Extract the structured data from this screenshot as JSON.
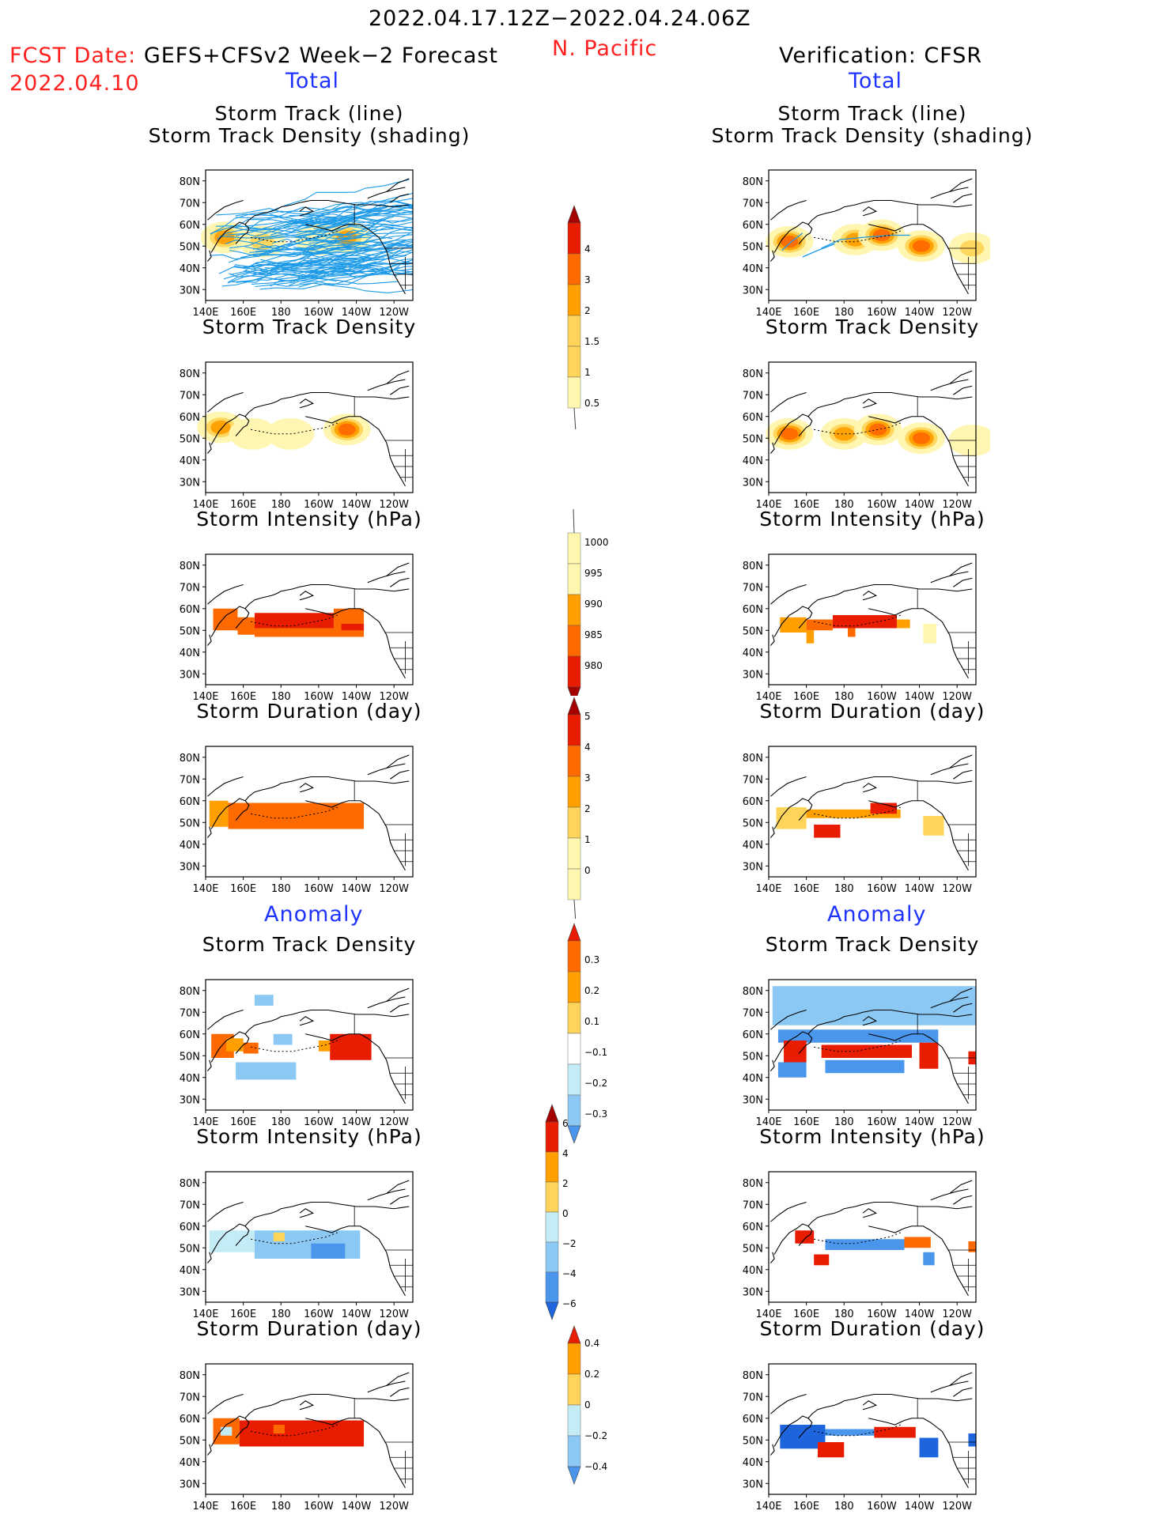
{
  "header": {
    "period": "2022.04.17.12Z−2022.04.24.06Z",
    "region": "N. Pacific",
    "fcst_label": "FCST Date:",
    "fcst_model": "GEFS+CFSv2 Week−2 Forecast",
    "fcst_date": "2022.04.10",
    "verification": "Verification: CFSR"
  },
  "sections": {
    "total": "Total",
    "anomaly": "Anomaly"
  },
  "panel_titles": {
    "track_line": "Storm Track (line)",
    "track_shading": "Storm Track Density (shading)",
    "density": "Storm Track Density",
    "intensity": "Storm Intensity (hPa)",
    "duration": "Storm Duration (day)"
  },
  "colors": {
    "title_red": "#ff2020",
    "section_blue": "#1f33ff",
    "track_line_blue": "#1e9be8",
    "ramp_pale_yellow": "#fff6b0",
    "ramp_yellow": "#ffd45a",
    "ramp_orange": "#ffa000",
    "ramp_dark_orange": "#ff6a00",
    "ramp_red": "#e81c00",
    "ramp_dark_red": "#a50000",
    "cool_light": "#c4ecf6",
    "cool_mid": "#8cc8f4",
    "cool_blue": "#4a96ec",
    "cool_dark": "#1e64dc"
  },
  "chart_data": [
    {
      "type": "heatmap",
      "name": "forecast-total-track",
      "title": "Storm Track (line) / Storm Track Density (shading)",
      "xaxis_ticks": [
        "140E",
        "160E",
        "180",
        "160W",
        "140W",
        "120W"
      ],
      "yaxis_ticks": [
        "30N",
        "40N",
        "50N",
        "60N",
        "70N",
        "80N"
      ],
      "lon_range": [
        140,
        250
      ],
      "lat_range": [
        25,
        85
      ],
      "overlay": "storm track lines",
      "blobs": [
        {
          "lon": 150,
          "lat": 54,
          "value": 2
        },
        {
          "lon": 170,
          "lat": 52,
          "value": 1.5
        },
        {
          "lon": 200,
          "lat": 53,
          "value": 1
        },
        {
          "lon": 215,
          "lat": 54,
          "value": 2
        }
      ]
    },
    {
      "type": "heatmap",
      "name": "verification-total-track",
      "title": "Storm Track (line) / Storm Track Density (shading)",
      "xaxis_ticks": [
        "140E",
        "160E",
        "180",
        "160W",
        "140W",
        "120W"
      ],
      "yaxis_ticks": [
        "30N",
        "40N",
        "50N",
        "60N",
        "70N",
        "80N"
      ],
      "lon_range": [
        140,
        250
      ],
      "lat_range": [
        25,
        85
      ],
      "overlay": "storm track lines",
      "blobs": [
        {
          "lon": 151,
          "lat": 52,
          "value": 3
        },
        {
          "lon": 186,
          "lat": 53,
          "value": 2
        },
        {
          "lon": 200,
          "lat": 55,
          "value": 3
        },
        {
          "lon": 221,
          "lat": 50,
          "value": 3
        },
        {
          "lon": 248,
          "lat": 49,
          "value": 1.5
        }
      ]
    },
    {
      "type": "heatmap",
      "name": "forecast-total-density",
      "title": "Storm Track Density",
      "xaxis_ticks": [
        "140E",
        "160E",
        "180",
        "160W",
        "140W",
        "120W"
      ],
      "yaxis_ticks": [
        "30N",
        "40N",
        "50N",
        "60N",
        "70N",
        "80N"
      ],
      "lon_range": [
        140,
        250
      ],
      "lat_range": [
        25,
        85
      ],
      "blobs": [
        {
          "lon": 148,
          "lat": 55,
          "value": 2
        },
        {
          "lon": 165,
          "lat": 52,
          "value": 1
        },
        {
          "lon": 185,
          "lat": 52,
          "value": 1
        },
        {
          "lon": 215,
          "lat": 54,
          "value": 3
        }
      ]
    },
    {
      "type": "heatmap",
      "name": "verification-total-density",
      "title": "Storm Track Density",
      "xaxis_ticks": [
        "140E",
        "160E",
        "180",
        "160W",
        "140W",
        "120W"
      ],
      "yaxis_ticks": [
        "30N",
        "40N",
        "50N",
        "60N",
        "70N",
        "80N"
      ],
      "lon_range": [
        140,
        250
      ],
      "lat_range": [
        25,
        85
      ],
      "blobs": [
        {
          "lon": 151,
          "lat": 52,
          "value": 3
        },
        {
          "lon": 180,
          "lat": 52,
          "value": 2
        },
        {
          "lon": 198,
          "lat": 54,
          "value": 3
        },
        {
          "lon": 221,
          "lat": 50,
          "value": 3
        },
        {
          "lon": 248,
          "lat": 49,
          "value": 1
        }
      ]
    },
    {
      "type": "heatmap",
      "name": "forecast-total-intensity",
      "title": "Storm Intensity (hPa)",
      "xaxis_ticks": [
        "140E",
        "160E",
        "180",
        "160W",
        "140W",
        "120W"
      ],
      "yaxis_ticks": [
        "30N",
        "40N",
        "50N",
        "60N",
        "70N",
        "80N"
      ],
      "lon_range": [
        140,
        250
      ],
      "lat_range": [
        25,
        85
      ],
      "cells": [
        {
          "lon0": 144,
          "lon1": 157,
          "lat0": 50,
          "lat1": 60,
          "value": 988
        },
        {
          "lon0": 157,
          "lon1": 166,
          "lat0": 48,
          "lat1": 56,
          "value": 988
        },
        {
          "lon0": 166,
          "lon1": 208,
          "lat0": 51,
          "lat1": 58,
          "value": 984
        },
        {
          "lon0": 166,
          "lon1": 224,
          "lat0": 47,
          "lat1": 51,
          "value": 988
        },
        {
          "lon0": 208,
          "lon1": 224,
          "lat0": 51,
          "lat1": 60,
          "value": 988
        },
        {
          "lon0": 212,
          "lon1": 224,
          "lat0": 50,
          "lat1": 53,
          "value": 984
        }
      ]
    },
    {
      "type": "heatmap",
      "name": "verification-total-intensity",
      "title": "Storm Intensity (hPa)",
      "xaxis_ticks": [
        "140E",
        "160E",
        "180",
        "160W",
        "140W",
        "120W"
      ],
      "yaxis_ticks": [
        "30N",
        "40N",
        "50N",
        "60N",
        "70N",
        "80N"
      ],
      "lon_range": [
        140,
        250
      ],
      "lat_range": [
        25,
        85
      ],
      "cells": [
        {
          "lon0": 146,
          "lon1": 160,
          "lat0": 49,
          "lat1": 56,
          "value": 993
        },
        {
          "lon0": 160,
          "lon1": 174,
          "lat0": 50,
          "lat1": 55,
          "value": 988
        },
        {
          "lon0": 174,
          "lon1": 208,
          "lat0": 51,
          "lat1": 57,
          "value": 982
        },
        {
          "lon0": 208,
          "lon1": 215,
          "lat0": 51,
          "lat1": 55,
          "value": 993
        },
        {
          "lon0": 222,
          "lon1": 229,
          "lat0": 44,
          "lat1": 53,
          "value": 998
        },
        {
          "lon0": 160,
          "lon1": 164,
          "lat0": 44,
          "lat1": 50,
          "value": 993
        },
        {
          "lon0": 182,
          "lon1": 186,
          "lat0": 47,
          "lat1": 51,
          "value": 988
        }
      ]
    },
    {
      "type": "heatmap",
      "name": "forecast-total-duration",
      "title": "Storm Duration (day)",
      "xaxis_ticks": [
        "140E",
        "160E",
        "180",
        "160W",
        "140W",
        "120W"
      ],
      "yaxis_ticks": [
        "30N",
        "40N",
        "50N",
        "60N",
        "70N",
        "80N"
      ],
      "lon_range": [
        140,
        250
      ],
      "lat_range": [
        25,
        85
      ],
      "cells": [
        {
          "lon0": 142,
          "lon1": 152,
          "lat0": 48,
          "lat1": 60,
          "value": 2
        },
        {
          "lon0": 152,
          "lon1": 224,
          "lat0": 47,
          "lat1": 59,
          "value": 3
        },
        {
          "lon0": 184,
          "lon1": 200,
          "lat0": 49,
          "lat1": 53,
          "value": 3.5
        }
      ]
    },
    {
      "type": "heatmap",
      "name": "verification-total-duration",
      "title": "Storm Duration (day)",
      "xaxis_ticks": [
        "140E",
        "160E",
        "180",
        "160W",
        "140W",
        "120W"
      ],
      "yaxis_ticks": [
        "30N",
        "40N",
        "50N",
        "60N",
        "70N",
        "80N"
      ],
      "lon_range": [
        140,
        250
      ],
      "lat_range": [
        25,
        85
      ],
      "cells": [
        {
          "lon0": 144,
          "lon1": 160,
          "lat0": 47,
          "lat1": 57,
          "value": 1.5
        },
        {
          "lon0": 160,
          "lon1": 210,
          "lat0": 52,
          "lat1": 56,
          "value": 2
        },
        {
          "lon0": 194,
          "lon1": 208,
          "lat0": 54,
          "lat1": 59,
          "value": 4
        },
        {
          "lon0": 164,
          "lon1": 178,
          "lat0": 43,
          "lat1": 49,
          "value": 4
        },
        {
          "lon0": 222,
          "lon1": 233,
          "lat0": 44,
          "lat1": 53,
          "value": 1.5
        }
      ]
    },
    {
      "type": "heatmap",
      "name": "forecast-anomaly-density",
      "title": "Storm Track Density",
      "xaxis_ticks": [
        "140E",
        "160E",
        "180",
        "160W",
        "140W",
        "120W"
      ],
      "yaxis_ticks": [
        "30N",
        "40N",
        "50N",
        "60N",
        "70N",
        "80N"
      ],
      "lon_range": [
        140,
        250
      ],
      "lat_range": [
        25,
        85
      ],
      "cells": [
        {
          "lon0": 143,
          "lon1": 155,
          "lat0": 49,
          "lat1": 60,
          "value": 0.25
        },
        {
          "lon0": 151,
          "lon1": 160,
          "lat0": 52,
          "lat1": 58,
          "value": 0.1
        },
        {
          "lon0": 160,
          "lon1": 168,
          "lat0": 51,
          "lat1": 56,
          "value": 0.25
        },
        {
          "lon0": 206,
          "lon1": 228,
          "lat0": 48,
          "lat1": 60,
          "value": 0.3
        },
        {
          "lon0": 200,
          "lon1": 206,
          "lat0": 52,
          "lat1": 57,
          "value": 0.1
        },
        {
          "lon0": 156,
          "lon1": 188,
          "lat0": 39,
          "lat1": 47,
          "value": -0.15
        },
        {
          "lon0": 176,
          "lon1": 186,
          "lat0": 55,
          "lat1": 60,
          "value": -0.15
        },
        {
          "lon0": 166,
          "lon1": 176,
          "lat0": 73,
          "lat1": 78,
          "value": -0.1
        }
      ]
    },
    {
      "type": "heatmap",
      "name": "verification-anomaly-density",
      "title": "Storm Track Density",
      "xaxis_ticks": [
        "140E",
        "160E",
        "180",
        "160W",
        "140W",
        "120W"
      ],
      "yaxis_ticks": [
        "30N",
        "40N",
        "50N",
        "60N",
        "70N",
        "80N"
      ],
      "lon_range": [
        140,
        250
      ],
      "lat_range": [
        25,
        85
      ],
      "cells": [
        {
          "lon0": 142,
          "lon1": 250,
          "lat0": 64,
          "lat1": 82,
          "value": -0.1
        },
        {
          "lon0": 145,
          "lon1": 230,
          "lat0": 56,
          "lat1": 62,
          "value": -0.25
        },
        {
          "lon0": 145,
          "lon1": 160,
          "lat0": 40,
          "lat1": 47,
          "value": -0.25
        },
        {
          "lon0": 170,
          "lon1": 212,
          "lat0": 42,
          "lat1": 48,
          "value": -0.25
        },
        {
          "lon0": 148,
          "lon1": 160,
          "lat0": 47,
          "lat1": 57,
          "value": 0.3
        },
        {
          "lon0": 168,
          "lon1": 216,
          "lat0": 49,
          "lat1": 55,
          "value": 0.3
        },
        {
          "lon0": 220,
          "lon1": 230,
          "lat0": 44,
          "lat1": 56,
          "value": 0.3
        },
        {
          "lon0": 246,
          "lon1": 250,
          "lat0": 46,
          "lat1": 52,
          "value": 0.3
        }
      ]
    },
    {
      "type": "heatmap",
      "name": "forecast-anomaly-intensity",
      "title": "Storm Intensity (hPa)",
      "xaxis_ticks": [
        "140E",
        "160E",
        "180",
        "160W",
        "140W",
        "120W"
      ],
      "yaxis_ticks": [
        "30N",
        "40N",
        "50N",
        "60N",
        "70N",
        "80N"
      ],
      "lon_range": [
        140,
        250
      ],
      "lat_range": [
        25,
        85
      ],
      "cells": [
        {
          "lon0": 142,
          "lon1": 166,
          "lat0": 48,
          "lat1": 58,
          "value": -1
        },
        {
          "lon0": 166,
          "lon1": 222,
          "lat0": 45,
          "lat1": 58,
          "value": -3
        },
        {
          "lon0": 196,
          "lon1": 214,
          "lat0": 45,
          "lat1": 52,
          "value": -4
        },
        {
          "lon0": 176,
          "lon1": 182,
          "lat0": 53,
          "lat1": 57,
          "value": 1
        }
      ]
    },
    {
      "type": "heatmap",
      "name": "verification-anomaly-intensity",
      "title": "Storm Intensity (hPa)",
      "xaxis_ticks": [
        "140E",
        "160E",
        "180",
        "160W",
        "140W",
        "120W"
      ],
      "yaxis_ticks": [
        "30N",
        "40N",
        "50N",
        "60N",
        "70N",
        "80N"
      ],
      "lon_range": [
        140,
        250
      ],
      "lat_range": [
        25,
        85
      ],
      "cells": [
        {
          "lon0": 170,
          "lon1": 212,
          "lat0": 49,
          "lat1": 54,
          "value": -5
        },
        {
          "lon0": 154,
          "lon1": 164,
          "lat0": 52,
          "lat1": 58,
          "value": 7
        },
        {
          "lon0": 164,
          "lon1": 172,
          "lat0": 42,
          "lat1": 47,
          "value": 7
        },
        {
          "lon0": 212,
          "lon1": 226,
          "lat0": 50,
          "lat1": 55,
          "value": 5
        },
        {
          "lon0": 222,
          "lon1": 228,
          "lat0": 42,
          "lat1": 48,
          "value": -5
        },
        {
          "lon0": 246,
          "lon1": 250,
          "lat0": 48,
          "lat1": 53,
          "value": 5
        }
      ]
    },
    {
      "type": "heatmap",
      "name": "forecast-anomaly-duration",
      "title": "Storm Duration (day)",
      "xaxis_ticks": [
        "140E",
        "160E",
        "180",
        "160W",
        "140W",
        "120W"
      ],
      "yaxis_ticks": [
        "30N",
        "40N",
        "50N",
        "60N",
        "70N",
        "80N"
      ],
      "lon_range": [
        140,
        250
      ],
      "lat_range": [
        25,
        85
      ],
      "cells": [
        {
          "lon0": 144,
          "lon1": 158,
          "lat0": 48,
          "lat1": 60,
          "value": 0.25
        },
        {
          "lon0": 158,
          "lon1": 224,
          "lat0": 47,
          "lat1": 59,
          "value": 0.4
        },
        {
          "lon0": 148,
          "lon1": 154,
          "lat0": 52,
          "lat1": 56,
          "value": -0.1
        },
        {
          "lon0": 176,
          "lon1": 182,
          "lat0": 53,
          "lat1": 57,
          "value": 0.25
        }
      ]
    },
    {
      "type": "heatmap",
      "name": "verification-anomaly-duration",
      "title": "Storm Duration (day)",
      "xaxis_ticks": [
        "140E",
        "160E",
        "180",
        "160W",
        "140W",
        "120W"
      ],
      "yaxis_ticks": [
        "30N",
        "40N",
        "50N",
        "60N",
        "70N",
        "80N"
      ],
      "lon_range": [
        140,
        250
      ],
      "lat_range": [
        25,
        85
      ],
      "cells": [
        {
          "lon0": 146,
          "lon1": 170,
          "lat0": 46,
          "lat1": 57,
          "value": -0.4
        },
        {
          "lon0": 170,
          "lon1": 210,
          "lat0": 52,
          "lat1": 55,
          "value": -0.3
        },
        {
          "lon0": 196,
          "lon1": 218,
          "lat0": 51,
          "lat1": 56,
          "value": 0.4
        },
        {
          "lon0": 166,
          "lon1": 180,
          "lat0": 42,
          "lat1": 49,
          "value": 0.4
        },
        {
          "lon0": 220,
          "lon1": 230,
          "lat0": 42,
          "lat1": 51,
          "value": -0.4
        },
        {
          "lon0": 246,
          "lon1": 250,
          "lat0": 47,
          "lat1": 53,
          "value": -0.4
        }
      ]
    }
  ],
  "colorbars": {
    "density_total": [
      "0.5",
      "1",
      "1.5",
      "2",
      "3",
      "4"
    ],
    "intensity_total": [
      "1000",
      "995",
      "990",
      "985",
      "980"
    ],
    "duration_total": [
      "0",
      "1",
      "2",
      "3",
      "4",
      "5"
    ],
    "density_anomaly": [
      "0.3",
      "0.2",
      "0.1",
      "−0.1",
      "−0.2",
      "−0.3"
    ],
    "intensity_anomaly": [
      "6",
      "4",
      "2",
      "0",
      "−2",
      "−4",
      "−6"
    ],
    "duration_anomaly": [
      "0.4",
      "0.2",
      "0",
      "−0.2",
      "−0.4"
    ]
  }
}
